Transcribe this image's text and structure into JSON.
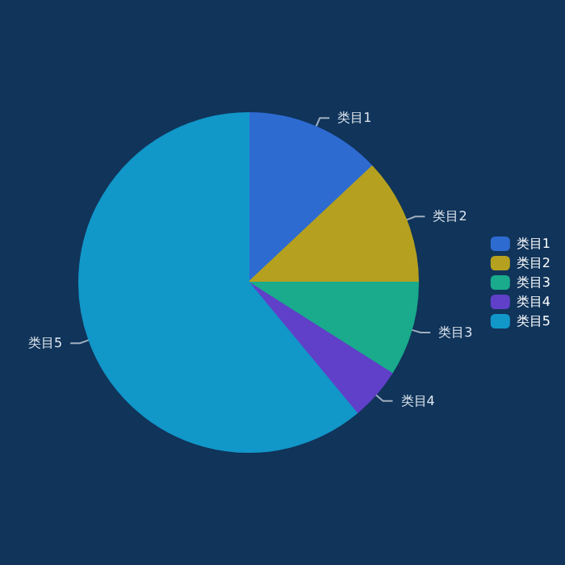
{
  "chart_data": {
    "type": "pie",
    "categories": [
      "类目1",
      "类目2",
      "类目3",
      "类目4",
      "类目5"
    ],
    "values": [
      13,
      12,
      9,
      5,
      61
    ],
    "colors": [
      "#2e6bd1",
      "#b5a11f",
      "#1aaa8c",
      "#6040c8",
      "#1297c9"
    ],
    "legend": "right"
  }
}
